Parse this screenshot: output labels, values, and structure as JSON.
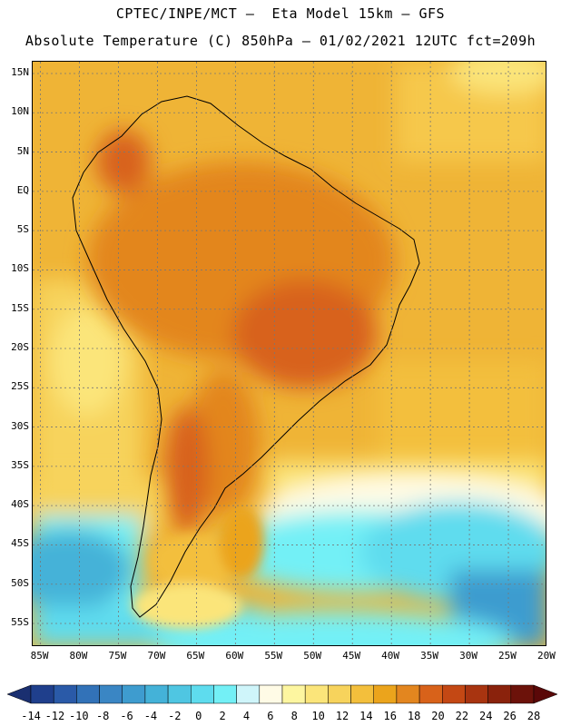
{
  "header": {
    "line1": "CPTEC/INPE/MCT –  Eta Model 15km – GFS",
    "line2": "Absolute Temperature (C) 850hPa – 01/02/2021 12UTC fct=209h"
  },
  "map": {
    "lat_ticks": [
      {
        "value": 15,
        "label": "15N"
      },
      {
        "value": 10,
        "label": "10N"
      },
      {
        "value": 5,
        "label": "5N"
      },
      {
        "value": 0,
        "label": "EQ"
      },
      {
        "value": -5,
        "label": "5S"
      },
      {
        "value": -10,
        "label": "10S"
      },
      {
        "value": -15,
        "label": "15S"
      },
      {
        "value": -20,
        "label": "20S"
      },
      {
        "value": -25,
        "label": "25S"
      },
      {
        "value": -30,
        "label": "30S"
      },
      {
        "value": -35,
        "label": "35S"
      },
      {
        "value": -40,
        "label": "40S"
      },
      {
        "value": -45,
        "label": "45S"
      },
      {
        "value": -50,
        "label": "50S"
      },
      {
        "value": -55,
        "label": "55S"
      }
    ],
    "lon_ticks": [
      {
        "value": -85,
        "label": "85W"
      },
      {
        "value": -80,
        "label": "80W"
      },
      {
        "value": -75,
        "label": "75W"
      },
      {
        "value": -70,
        "label": "70W"
      },
      {
        "value": -65,
        "label": "65W"
      },
      {
        "value": -60,
        "label": "60W"
      },
      {
        "value": -55,
        "label": "55W"
      },
      {
        "value": -50,
        "label": "50W"
      },
      {
        "value": -45,
        "label": "45W"
      },
      {
        "value": -40,
        "label": "40W"
      },
      {
        "value": -35,
        "label": "35W"
      },
      {
        "value": -30,
        "label": "30W"
      },
      {
        "value": -25,
        "label": "25W"
      },
      {
        "value": -20,
        "label": "20W"
      }
    ],
    "lon_range": [
      -86,
      -20
    ],
    "lat_range": [
      -58,
      16.5
    ],
    "grid": true
  },
  "colorbar": {
    "labels": [
      "-14",
      "-12",
      "-10",
      "-8",
      "-6",
      "-4",
      "-2",
      "0",
      "2",
      "4",
      "6",
      "8",
      "10",
      "12",
      "14",
      "16",
      "18",
      "20",
      "22",
      "24",
      "26",
      "28"
    ],
    "colors": [
      "#1f3f8c",
      "#2a5aa8",
      "#3272b8",
      "#3a86c4",
      "#3e9ccf",
      "#44b2d8",
      "#4fc6e2",
      "#5edcee",
      "#73f0f6",
      "#cff5fa",
      "#fffbe6",
      "#fdf6a0",
      "#fbe57a",
      "#f7d35c",
      "#f3bf3c",
      "#eba41c",
      "#e3861f",
      "#d8621a",
      "#c44814",
      "#a83410",
      "#8a220c",
      "#6c120a"
    ],
    "left_arrow_color": "#1a2f70",
    "right_arrow_color": "#5a0808"
  }
}
